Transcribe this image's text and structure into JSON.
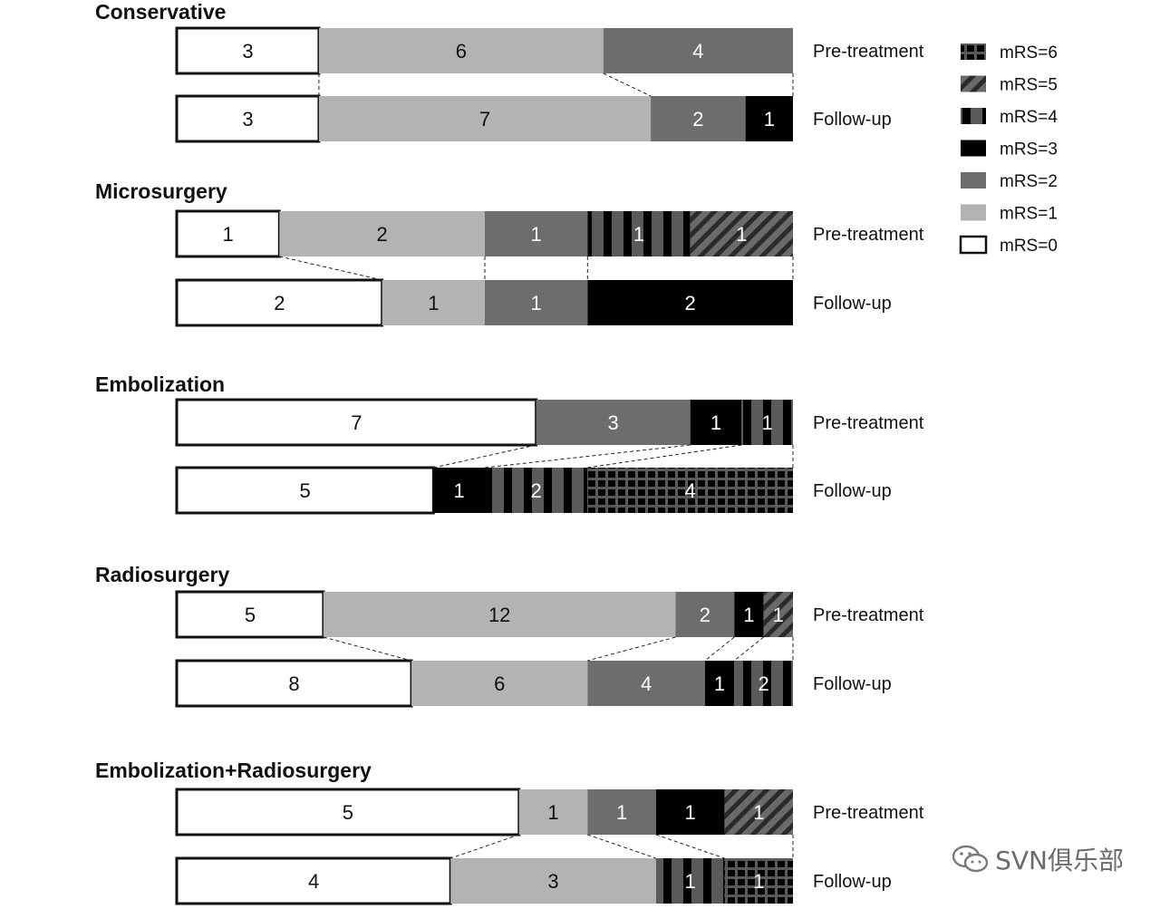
{
  "chart_data": {
    "type": "bar",
    "subtype": "stacked-horizontal-100-percent",
    "legend": {
      "placement": "top-right",
      "entries": [
        {
          "key": "6",
          "label": "mRS=6",
          "pattern": "grid"
        },
        {
          "key": "5",
          "label": "mRS=5",
          "pattern": "hatch"
        },
        {
          "key": "4",
          "label": "mRS=4",
          "pattern": "stripes"
        },
        {
          "key": "3",
          "label": "mRS=3",
          "pattern": "solid-black"
        },
        {
          "key": "2",
          "label": "mRS=2",
          "pattern": "solid-dark-gray"
        },
        {
          "key": "1",
          "label": "mRS=1",
          "pattern": "solid-light-gray"
        },
        {
          "key": "0",
          "label": "mRS=0",
          "pattern": "white-outline"
        }
      ]
    },
    "colors": {
      "mrs0": "#ffffff",
      "mrs1": "#b3b3b3",
      "mrs2": "#6d6d6d",
      "mrs3": "#000000",
      "mrs4_bg": "#5a5a5a",
      "mrs5_bg": "#6a6a6a",
      "mrs6_bg": "#5a5a5a",
      "line": "#111111"
    },
    "panels": [
      {
        "title": "Conservative",
        "rows": [
          {
            "label": "Pre-treatment",
            "segments": [
              {
                "mrs": "0",
                "value": 3
              },
              {
                "mrs": "1",
                "value": 6
              },
              {
                "mrs": "2",
                "value": 4
              }
            ]
          },
          {
            "label": "Follow-up",
            "segments": [
              {
                "mrs": "0",
                "value": 3
              },
              {
                "mrs": "1",
                "value": 7
              },
              {
                "mrs": "2",
                "value": 2
              },
              {
                "mrs": "3",
                "value": 1
              }
            ]
          }
        ]
      },
      {
        "title": "Microsurgery",
        "rows": [
          {
            "label": "Pre-treatment",
            "segments": [
              {
                "mrs": "0",
                "value": 1
              },
              {
                "mrs": "1",
                "value": 2
              },
              {
                "mrs": "2",
                "value": 1
              },
              {
                "mrs": "4",
                "value": 1
              },
              {
                "mrs": "5",
                "value": 1
              }
            ]
          },
          {
            "label": "Follow-up",
            "segments": [
              {
                "mrs": "0",
                "value": 2
              },
              {
                "mrs": "1",
                "value": 1
              },
              {
                "mrs": "2",
                "value": 1
              },
              {
                "mrs": "3",
                "value": 2
              }
            ]
          }
        ]
      },
      {
        "title": "Embolization",
        "rows": [
          {
            "label": "Pre-treatment",
            "segments": [
              {
                "mrs": "0",
                "value": 7
              },
              {
                "mrs": "2",
                "value": 3
              },
              {
                "mrs": "3",
                "value": 1
              },
              {
                "mrs": "4",
                "value": 1
              }
            ]
          },
          {
            "label": "Follow-up",
            "segments": [
              {
                "mrs": "0",
                "value": 5
              },
              {
                "mrs": "3",
                "value": 1
              },
              {
                "mrs": "4",
                "value": 2
              },
              {
                "mrs": "6",
                "value": 4
              }
            ]
          }
        ]
      },
      {
        "title": "Radiosurgery",
        "rows": [
          {
            "label": "Pre-treatment",
            "segments": [
              {
                "mrs": "0",
                "value": 5
              },
              {
                "mrs": "1",
                "value": 12
              },
              {
                "mrs": "2",
                "value": 2
              },
              {
                "mrs": "3",
                "value": 1
              },
              {
                "mrs": "5",
                "value": 1
              }
            ]
          },
          {
            "label": "Follow-up",
            "segments": [
              {
                "mrs": "0",
                "value": 8
              },
              {
                "mrs": "1",
                "value": 6
              },
              {
                "mrs": "2",
                "value": 4
              },
              {
                "mrs": "3",
                "value": 1
              },
              {
                "mrs": "4",
                "value": 2
              }
            ]
          }
        ]
      },
      {
        "title": "Embolization+Radiosurgery",
        "rows": [
          {
            "label": "Pre-treatment",
            "segments": [
              {
                "mrs": "0",
                "value": 5
              },
              {
                "mrs": "1",
                "value": 1
              },
              {
                "mrs": "2",
                "value": 1
              },
              {
                "mrs": "3",
                "value": 1
              },
              {
                "mrs": "5",
                "value": 1
              }
            ]
          },
          {
            "label": "Follow-up",
            "segments": [
              {
                "mrs": "0",
                "value": 4
              },
              {
                "mrs": "1",
                "value": 3
              },
              {
                "mrs": "4",
                "value": 1
              },
              {
                "mrs": "6",
                "value": 1
              }
            ]
          }
        ]
      }
    ]
  },
  "watermark": {
    "text": "SVN俱乐部",
    "icon": "wechat-icon"
  }
}
